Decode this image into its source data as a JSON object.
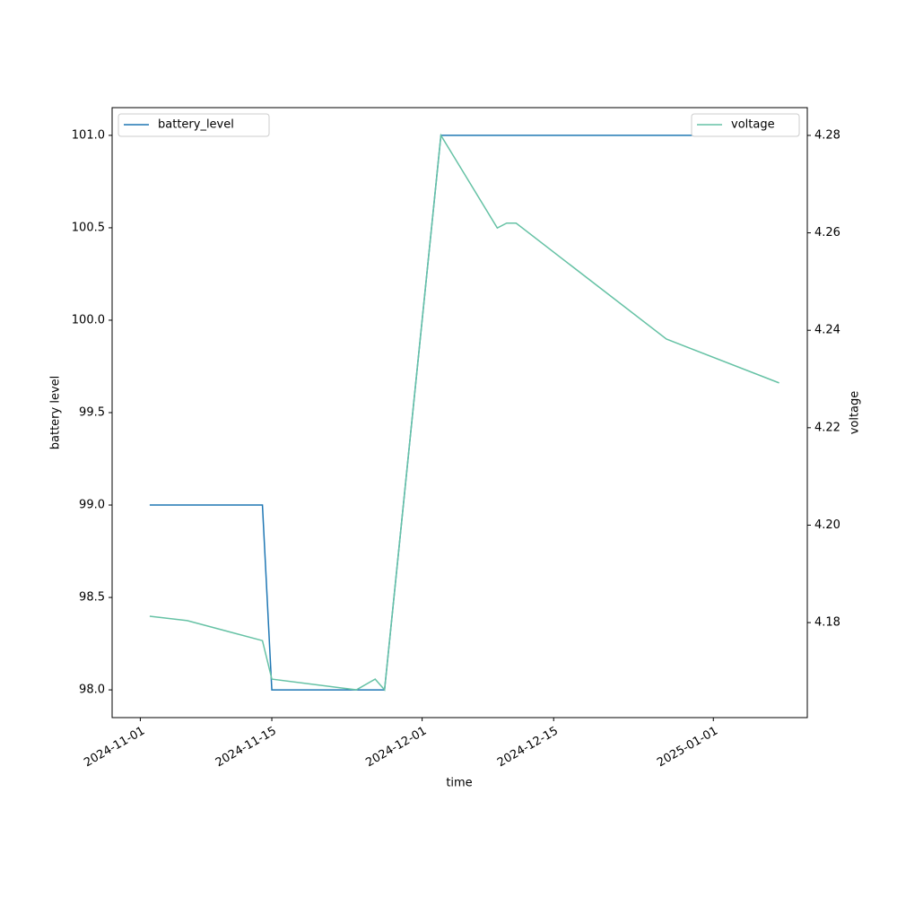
{
  "chart_data": {
    "type": "line",
    "xlabel": "time",
    "ylabel": "battery level",
    "y2label": "voltage",
    "xlim": [
      "2024-10-29",
      "2025-01-11"
    ],
    "xticks": [
      "2024-11-01",
      "2024-11-15",
      "2024-12-01",
      "2024-12-15",
      "2025-01-01"
    ],
    "ylim": [
      97.85,
      101.15
    ],
    "yticks": [
      {
        "value": 98,
        "label": "98.0"
      },
      {
        "value": 98.5,
        "label": "98.5"
      },
      {
        "value": 99,
        "label": "99.0"
      },
      {
        "value": 99.5,
        "label": "99.5"
      },
      {
        "value": 100,
        "label": "100.0"
      },
      {
        "value": 100.5,
        "label": "100.5"
      },
      {
        "value": 101,
        "label": "101.0"
      }
    ],
    "y2lim": [
      4.1605,
      4.2857
    ],
    "y2ticks": [
      4.18,
      {
        "value": 4.2,
        "label": "4.20"
      },
      4.22,
      4.24,
      4.26,
      4.28
    ],
    "series": [
      {
        "name": "battery_level",
        "color": "#1f77b4",
        "legend": "upper left",
        "x": [
          "2024-11-02",
          "2024-11-14",
          "2024-11-15",
          "2024-11-27",
          "2024-12-03",
          "2025-01-08"
        ],
        "values": [
          99,
          99,
          98,
          98,
          101,
          101
        ]
      },
      {
        "name": "voltage",
        "color": "#66c2a5",
        "axis": "y2",
        "legend": "upper right",
        "x": [
          "2024-11-02",
          "2024-11-06",
          "2024-11-14",
          "2024-11-15",
          "2024-11-24",
          "2024-11-26",
          "2024-11-27",
          "2024-12-03",
          "2024-12-09",
          "2024-12-10",
          "2024-12-11",
          "2024-12-27",
          "2025-01-08"
        ],
        "values": [
          4.1813,
          4.1804,
          4.1763,
          4.1684,
          4.1662,
          4.1684,
          4.1662,
          4.28,
          4.261,
          4.262,
          4.262,
          4.2382,
          4.2292
        ]
      }
    ]
  }
}
